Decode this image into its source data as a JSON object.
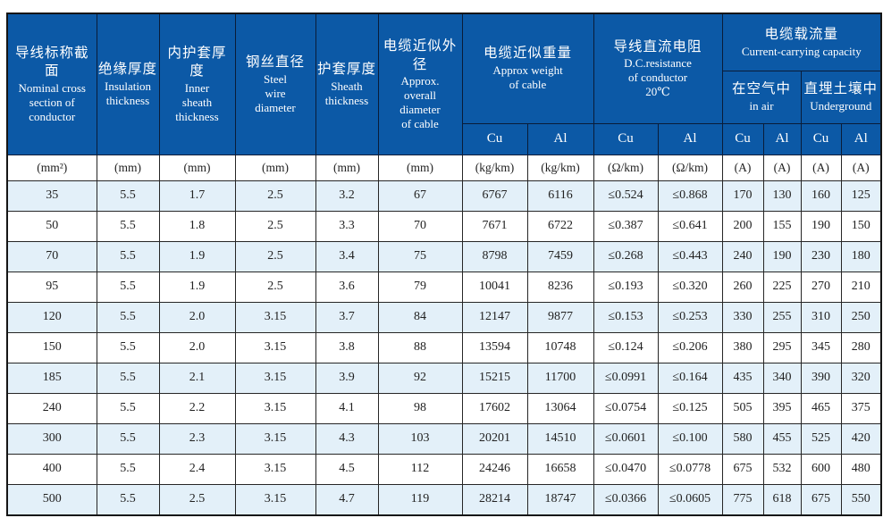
{
  "colors": {
    "header_bg": "#0c59a6",
    "alt_row_bg": "#e3f0f9",
    "border": "#262626",
    "header_text": "#ffffff"
  },
  "table": {
    "columns": [
      {
        "zh": "导线标称截面",
        "en": "Nominal cross\nsection of\nconductor"
      },
      {
        "zh": "绝缘厚度",
        "en": "Insulation\nthickness"
      },
      {
        "zh": "内护套厚度",
        "en": "Inner\nsheath\nthickness"
      },
      {
        "zh": "钢丝直径",
        "en": "Steel\nwire\ndiameter"
      },
      {
        "zh": "护套厚度",
        "en": "Sheath\nthickness"
      },
      {
        "zh": "电缆近似外径",
        "en": "Approx.\noverall\ndiameter\nof cable"
      }
    ],
    "groups": {
      "weight": {
        "zh": "电缆近似重量",
        "en": "Approx weight\nof cable"
      },
      "resistance": {
        "zh": "导线直流电阻",
        "en": "D.C.resistance\nof conductor\n20℃"
      },
      "capacity": {
        "zh": "电缆载流量",
        "en": "Current-carrying capacity"
      },
      "in_air": {
        "zh": "在空气中",
        "en": "in air"
      },
      "underground": {
        "zh": "直埋土壤中",
        "en": "Underground"
      }
    },
    "metal_labels": [
      "Cu",
      "Al",
      "Cu",
      "Al",
      "Cu",
      "Al",
      "Cu",
      "Al"
    ],
    "units": [
      "(mm²)",
      "(mm)",
      "(mm)",
      "(mm)",
      "(mm)",
      "(mm)",
      "(kg/km)",
      "(kg/km)",
      "(Ω/km)",
      "(Ω/km)",
      "(A)",
      "(A)",
      "(A)",
      "(A)"
    ],
    "rows": [
      [
        "35",
        "5.5",
        "1.7",
        "2.5",
        "3.2",
        "67",
        "6767",
        "6116",
        "≤0.524",
        "≤0.868",
        "170",
        "130",
        "160",
        "125"
      ],
      [
        "50",
        "5.5",
        "1.8",
        "2.5",
        "3.3",
        "70",
        "7671",
        "6722",
        "≤0.387",
        "≤0.641",
        "200",
        "155",
        "190",
        "150"
      ],
      [
        "70",
        "5.5",
        "1.9",
        "2.5",
        "3.4",
        "75",
        "8798",
        "7459",
        "≤0.268",
        "≤0.443",
        "240",
        "190",
        "230",
        "180"
      ],
      [
        "95",
        "5.5",
        "1.9",
        "2.5",
        "3.6",
        "79",
        "10041",
        "8236",
        "≤0.193",
        "≤0.320",
        "260",
        "225",
        "270",
        "210"
      ],
      [
        "120",
        "5.5",
        "2.0",
        "3.15",
        "3.7",
        "84",
        "12147",
        "9877",
        "≤0.153",
        "≤0.253",
        "330",
        "255",
        "310",
        "250"
      ],
      [
        "150",
        "5.5",
        "2.0",
        "3.15",
        "3.8",
        "88",
        "13594",
        "10748",
        "≤0.124",
        "≤0.206",
        "380",
        "295",
        "345",
        "280"
      ],
      [
        "185",
        "5.5",
        "2.1",
        "3.15",
        "3.9",
        "92",
        "15215",
        "11700",
        "≤0.0991",
        "≤0.164",
        "435",
        "340",
        "390",
        "320"
      ],
      [
        "240",
        "5.5",
        "2.2",
        "3.15",
        "4.1",
        "98",
        "17602",
        "13064",
        "≤0.0754",
        "≤0.125",
        "505",
        "395",
        "465",
        "375"
      ],
      [
        "300",
        "5.5",
        "2.3",
        "3.15",
        "4.3",
        "103",
        "20201",
        "14510",
        "≤0.0601",
        "≤0.100",
        "580",
        "455",
        "525",
        "420"
      ],
      [
        "400",
        "5.5",
        "2.4",
        "3.15",
        "4.5",
        "112",
        "24246",
        "16658",
        "≤0.0470",
        "≤0.0778",
        "675",
        "532",
        "600",
        "480"
      ],
      [
        "500",
        "5.5",
        "2.5",
        "3.15",
        "4.7",
        "119",
        "28214",
        "18747",
        "≤0.0366",
        "≤0.0605",
        "775",
        "618",
        "675",
        "550"
      ]
    ]
  }
}
